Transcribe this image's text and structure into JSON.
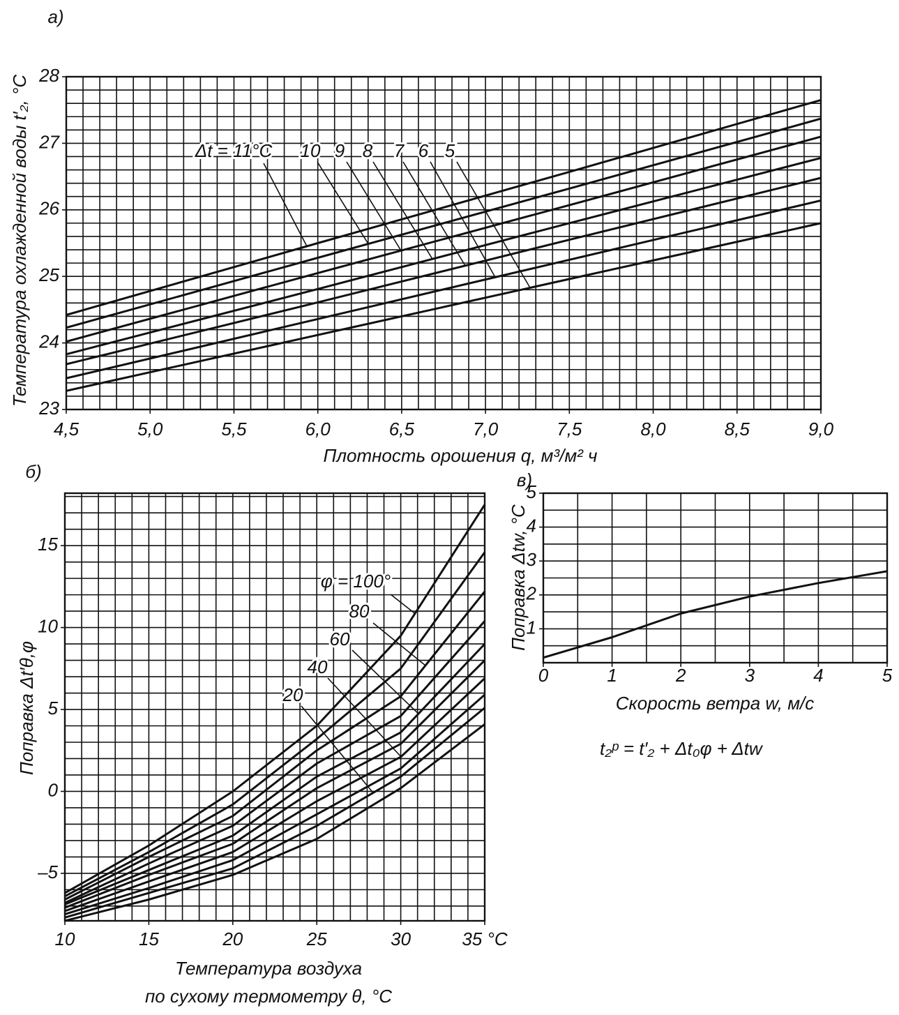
{
  "chart_data": [
    {
      "type": "line",
      "panel_label": "а)",
      "color": "#111",
      "xlabel": "Плотность орошения q, м³/м² ч",
      "ylabel": "Температура охлажденной воды t′₂, °C",
      "x": [
        4.5,
        6.0,
        7.5,
        9.0
      ],
      "series": [
        {
          "name": "Δt = 11°C",
          "values": [
            24.42,
            25.5,
            26.57,
            27.65
          ]
        },
        {
          "name": "10",
          "values": [
            24.23,
            25.28,
            26.32,
            27.37
          ]
        },
        {
          "name": "9",
          "values": [
            24.02,
            25.05,
            26.07,
            27.1
          ]
        },
        {
          "name": "8",
          "values": [
            23.83,
            24.81,
            25.8,
            26.78
          ]
        },
        {
          "name": "7",
          "values": [
            23.68,
            24.61,
            25.55,
            26.48
          ]
        },
        {
          "name": "6",
          "values": [
            23.47,
            24.36,
            25.25,
            26.14
          ]
        },
        {
          "name": "5",
          "values": [
            23.28,
            24.12,
            24.96,
            25.8
          ]
        }
      ],
      "xlim": [
        4.5,
        9.0
      ],
      "ylim": [
        23,
        28
      ],
      "xticks": [
        {
          "value": 4.5,
          "label": "4,5"
        },
        {
          "value": 5.0,
          "label": "5,0"
        },
        {
          "value": 5.5,
          "label": "5,5"
        },
        {
          "value": 6.0,
          "label": "6,0"
        },
        {
          "value": 6.5,
          "label": "6,5"
        },
        {
          "value": 7.0,
          "label": "7,0"
        },
        {
          "value": 7.5,
          "label": "7,5"
        },
        {
          "value": 8.0,
          "label": "8,0"
        },
        {
          "value": 8.5,
          "label": "8,5"
        },
        {
          "value": 9.0,
          "label": "9,0"
        }
      ],
      "yticks": [
        23,
        24,
        25,
        26,
        27,
        28
      ],
      "grid": true,
      "x_minor_step": 0.1,
      "y_minor_step": 0.2
    },
    {
      "type": "line",
      "panel_label": "б)",
      "color": "#111",
      "xlabel": [
        "Температура воздуха",
        "по сухому термометру θ, °C"
      ],
      "ylabel": "Поправка Δt′θ,φ",
      "x": [
        10,
        15,
        20,
        25,
        30,
        35
      ],
      "series": [
        {
          "name": "φ = 100°",
          "values": [
            -6.2,
            -3.3,
            0,
            4.0,
            9.5,
            17.5
          ]
        },
        {
          "values": [
            -6.4,
            -3.7,
            -0.8,
            3.2,
            7.5,
            14.6
          ]
        },
        {
          "name": "80",
          "values": [
            -6.6,
            -4.0,
            -1.5,
            2.5,
            5.8,
            12.2
          ]
        },
        {
          "values": [
            -6.8,
            -4.4,
            -2.1,
            1.7,
            4.6,
            10.4
          ]
        },
        {
          "name": "60",
          "values": [
            -6.9,
            -4.8,
            -2.7,
            0.9,
            3.6,
            9.0
          ]
        },
        {
          "values": [
            -7.1,
            -5.1,
            -3.2,
            0.2,
            2.9,
            8.0
          ]
        },
        {
          "name": "40",
          "values": [
            -7.3,
            -5.5,
            -3.7,
            -0.6,
            2.1,
            6.9
          ]
        },
        {
          "values": [
            -7.5,
            -5.9,
            -4.2,
            -1.4,
            1.4,
            5.9
          ]
        },
        {
          "name": "20",
          "values": [
            -7.7,
            -6.2,
            -4.7,
            -2.1,
            0.9,
            5.1
          ]
        },
        {
          "values": [
            -7.9,
            -6.6,
            -5.1,
            -2.9,
            0.2,
            4.1
          ]
        }
      ],
      "xlim": [
        10,
        35
      ],
      "ylim": [
        -7.9,
        18.2
      ],
      "xticks": [
        10,
        15,
        20,
        25,
        30,
        {
          "value": 35,
          "label": "35 °C"
        }
      ],
      "yticks": [
        {
          "value": -5,
          "label": "–5"
        },
        0,
        5,
        10,
        15
      ],
      "grid": true,
      "x_minor_step": 1,
      "y_minor_step": 1
    },
    {
      "type": "line",
      "panel_label": "в)",
      "color": "#111",
      "xlabel": "Скорость ветра w, м/с",
      "ylabel": "Поправка Δtw, °C",
      "annotation": "t₂ᵖ = t′₂ + Δt₀φ + Δtw",
      "x": [
        0,
        1,
        2,
        3,
        4,
        5
      ],
      "series": [
        {
          "values": [
            0.15,
            0.75,
            1.45,
            1.95,
            2.35,
            2.7
          ]
        }
      ],
      "xlim": [
        0,
        5
      ],
      "ylim": [
        0,
        5
      ],
      "xticks": [
        0,
        1,
        2,
        3,
        4,
        5
      ],
      "yticks": [
        1,
        2,
        3,
        4,
        5
      ],
      "grid": true,
      "x_minor_step": 0.5,
      "y_minor_step": 0.5
    }
  ]
}
